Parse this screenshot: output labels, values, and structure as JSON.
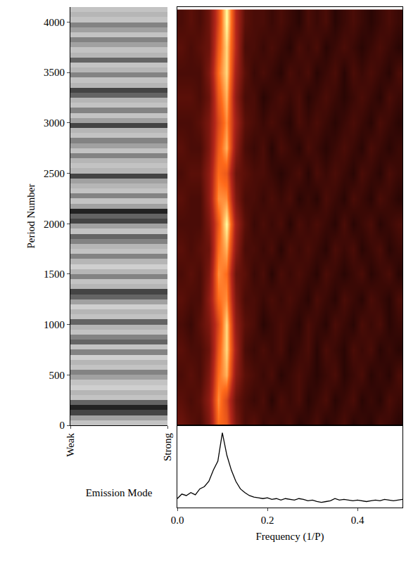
{
  "chart_data": [
    {
      "type": "heatmap",
      "xlabel": "Emission Mode",
      "ylabel": "Period Number",
      "xlim": [
        0,
        1
      ],
      "xticks": [
        {
          "value": 0,
          "label": "Weak"
        },
        {
          "value": 1,
          "label": "Strong"
        }
      ],
      "ylim": [
        0,
        4150
      ],
      "yticks": [
        0,
        500,
        1000,
        1500,
        2000,
        2500,
        3000,
        3500,
        4000
      ],
      "zlim": [
        0,
        1
      ],
      "y": [
        25,
        75,
        125,
        175,
        225,
        275,
        325,
        375,
        425,
        475,
        525,
        575,
        625,
        675,
        725,
        775,
        825,
        875,
        925,
        975,
        1025,
        1075,
        1125,
        1175,
        1225,
        1275,
        1325,
        1375,
        1425,
        1475,
        1525,
        1575,
        1625,
        1675,
        1725,
        1775,
        1825,
        1875,
        1925,
        1975,
        2025,
        2075,
        2125,
        2175,
        2225,
        2275,
        2325,
        2375,
        2425,
        2475,
        2525,
        2575,
        2625,
        2675,
        2725,
        2775,
        2825,
        2875,
        2925,
        2975,
        3025,
        3075,
        3125,
        3175,
        3225,
        3275,
        3325,
        3375,
        3425,
        3475,
        3525,
        3575,
        3625,
        3675,
        3725,
        3775,
        3825,
        3875,
        3925,
        3975,
        4025,
        4075,
        4125
      ],
      "values": [
        0.3,
        0.5,
        0.8,
        0.9,
        0.7,
        0.3,
        0.4,
        0.2,
        0.3,
        0.5,
        0.6,
        0.3,
        0.4,
        0.2,
        0.6,
        0.3,
        0.7,
        0.6,
        0.3,
        0.4,
        0.7,
        0.3,
        0.4,
        0.2,
        0.5,
        0.7,
        0.8,
        0.4,
        0.3,
        0.6,
        0.4,
        0.2,
        0.4,
        0.6,
        0.3,
        0.4,
        0.6,
        0.7,
        0.3,
        0.5,
        0.8,
        0.7,
        0.9,
        0.5,
        0.3,
        0.6,
        0.3,
        0.4,
        0.5,
        0.8,
        0.4,
        0.3,
        0.4,
        0.6,
        0.3,
        0.5,
        0.6,
        0.3,
        0.4,
        0.8,
        0.5,
        0.3,
        0.6,
        0.3,
        0.4,
        0.7,
        0.8,
        0.4,
        0.3,
        0.6,
        0.4,
        0.3,
        0.7,
        0.4,
        0.3,
        0.5,
        0.6,
        0.3,
        0.5,
        0.6,
        0.3,
        0.4,
        0.3
      ]
    },
    {
      "type": "heatmap",
      "tick_labels": false,
      "xlim": [
        0,
        0.5
      ],
      "ylim": [
        0,
        4150
      ],
      "zlim": [
        0,
        1
      ],
      "x": [
        0.01,
        0.03,
        0.05,
        0.07,
        0.09,
        0.11,
        0.13,
        0.15,
        0.17,
        0.19,
        0.21,
        0.23,
        0.25,
        0.27,
        0.29,
        0.31,
        0.33,
        0.35,
        0.37,
        0.39,
        0.41,
        0.43,
        0.45,
        0.47,
        0.49
      ],
      "y": [
        0,
        250,
        500,
        750,
        1000,
        1250,
        1500,
        1750,
        2000,
        2250,
        2500,
        2750,
        3000,
        3250,
        3500,
        3750,
        4000
      ],
      "z": [
        [
          0.4,
          0.35,
          0.3,
          0.45,
          0.8,
          0.75,
          0.45,
          0.3,
          0.35,
          0.25,
          0.3,
          0.25,
          0.3,
          0.2,
          0.25,
          0.3,
          0.2,
          0.25,
          0.3,
          0.2,
          0.25,
          0.2,
          0.3,
          0.25,
          0.2
        ],
        [
          0.35,
          0.3,
          0.35,
          0.5,
          0.85,
          0.7,
          0.4,
          0.3,
          0.25,
          0.3,
          0.2,
          0.3,
          0.25,
          0.3,
          0.2,
          0.25,
          0.3,
          0.2,
          0.25,
          0.3,
          0.2,
          0.25,
          0.2,
          0.3,
          0.25
        ],
        [
          0.3,
          0.35,
          0.3,
          0.45,
          0.8,
          0.9,
          0.5,
          0.35,
          0.3,
          0.25,
          0.3,
          0.2,
          0.25,
          0.3,
          0.25,
          0.2,
          0.25,
          0.3,
          0.2,
          0.25,
          0.3,
          0.2,
          0.25,
          0.2,
          0.3
        ],
        [
          0.35,
          0.3,
          0.3,
          0.4,
          0.75,
          0.95,
          0.55,
          0.3,
          0.25,
          0.3,
          0.25,
          0.3,
          0.2,
          0.25,
          0.3,
          0.2,
          0.3,
          0.25,
          0.2,
          0.3,
          0.25,
          0.3,
          0.2,
          0.25,
          0.2
        ],
        [
          0.3,
          0.25,
          0.35,
          0.45,
          0.7,
          0.95,
          0.5,
          0.35,
          0.3,
          0.2,
          0.25,
          0.3,
          0.25,
          0.2,
          0.3,
          0.25,
          0.2,
          0.3,
          0.25,
          0.2,
          0.3,
          0.25,
          0.3,
          0.2,
          0.25
        ],
        [
          0.35,
          0.3,
          0.3,
          0.5,
          0.8,
          0.85,
          0.45,
          0.3,
          0.3,
          0.25,
          0.3,
          0.25,
          0.3,
          0.25,
          0.2,
          0.3,
          0.25,
          0.2,
          0.3,
          0.25,
          0.2,
          0.3,
          0.25,
          0.2,
          0.3
        ],
        [
          0.3,
          0.35,
          0.3,
          0.45,
          0.85,
          0.8,
          0.4,
          0.35,
          0.25,
          0.3,
          0.2,
          0.3,
          0.25,
          0.3,
          0.25,
          0.2,
          0.3,
          0.25,
          0.2,
          0.25,
          0.3,
          0.2,
          0.25,
          0.3,
          0.2
        ],
        [
          0.35,
          0.3,
          0.35,
          0.4,
          0.8,
          0.9,
          0.5,
          0.3,
          0.3,
          0.25,
          0.3,
          0.2,
          0.3,
          0.25,
          0.3,
          0.25,
          0.2,
          0.3,
          0.25,
          0.3,
          0.2,
          0.25,
          0.3,
          0.2,
          0.25
        ],
        [
          0.3,
          0.3,
          0.3,
          0.45,
          0.75,
          1.0,
          0.55,
          0.35,
          0.25,
          0.3,
          0.25,
          0.3,
          0.2,
          0.3,
          0.25,
          0.3,
          0.25,
          0.2,
          0.3,
          0.2,
          0.25,
          0.3,
          0.2,
          0.25,
          0.3
        ],
        [
          0.35,
          0.3,
          0.3,
          0.5,
          0.85,
          0.85,
          0.45,
          0.3,
          0.3,
          0.25,
          0.3,
          0.25,
          0.3,
          0.2,
          0.25,
          0.2,
          0.3,
          0.25,
          0.2,
          0.3,
          0.25,
          0.2,
          0.3,
          0.25,
          0.2
        ],
        [
          0.3,
          0.35,
          0.35,
          0.5,
          0.8,
          0.75,
          0.4,
          0.35,
          0.3,
          0.3,
          0.25,
          0.2,
          0.25,
          0.3,
          0.2,
          0.3,
          0.25,
          0.3,
          0.25,
          0.2,
          0.3,
          0.25,
          0.2,
          0.3,
          0.25
        ],
        [
          0.35,
          0.3,
          0.3,
          0.45,
          0.75,
          0.9,
          0.5,
          0.3,
          0.25,
          0.3,
          0.2,
          0.3,
          0.25,
          0.2,
          0.3,
          0.25,
          0.2,
          0.25,
          0.3,
          0.25,
          0.2,
          0.3,
          0.25,
          0.2,
          0.25
        ],
        [
          0.3,
          0.3,
          0.35,
          0.45,
          0.7,
          0.85,
          0.55,
          0.35,
          0.3,
          0.25,
          0.3,
          0.25,
          0.2,
          0.3,
          0.25,
          0.3,
          0.25,
          0.2,
          0.25,
          0.3,
          0.25,
          0.2,
          0.3,
          0.25,
          0.2
        ],
        [
          0.35,
          0.35,
          0.3,
          0.4,
          0.75,
          0.9,
          0.5,
          0.3,
          0.3,
          0.2,
          0.25,
          0.3,
          0.25,
          0.3,
          0.2,
          0.25,
          0.3,
          0.25,
          0.2,
          0.25,
          0.3,
          0.25,
          0.2,
          0.3,
          0.25
        ],
        [
          0.3,
          0.3,
          0.3,
          0.45,
          0.8,
          0.95,
          0.55,
          0.35,
          0.25,
          0.3,
          0.25,
          0.2,
          0.3,
          0.25,
          0.3,
          0.2,
          0.25,
          0.3,
          0.2,
          0.3,
          0.25,
          0.3,
          0.25,
          0.2,
          0.3
        ],
        [
          0.35,
          0.3,
          0.35,
          0.4,
          0.75,
          0.95,
          0.6,
          0.3,
          0.3,
          0.25,
          0.3,
          0.25,
          0.2,
          0.3,
          0.25,
          0.3,
          0.2,
          0.25,
          0.3,
          0.25,
          0.2,
          0.25,
          0.3,
          0.25,
          0.2
        ],
        [
          0.3,
          0.35,
          0.3,
          0.4,
          0.7,
          1.0,
          0.6,
          0.35,
          0.3,
          0.3,
          0.25,
          0.3,
          0.25,
          0.2,
          0.3,
          0.25,
          0.3,
          0.2,
          0.25,
          0.3,
          0.25,
          0.2,
          0.25,
          0.3,
          0.25
        ]
      ]
    },
    {
      "type": "line",
      "xlabel": "Frequency (1/P)",
      "tick_labels": "x",
      "color": "#000000",
      "xlim": [
        0,
        0.5
      ],
      "xticks": [
        {
          "value": 0,
          "label": "0.0"
        },
        {
          "value": 0.2,
          "label": "0.2"
        },
        {
          "value": 0.4,
          "label": "0.4"
        }
      ],
      "ylim": [
        0,
        1.1
      ],
      "x": [
        0,
        0.01,
        0.02,
        0.03,
        0.04,
        0.05,
        0.06,
        0.07,
        0.08,
        0.09,
        0.1,
        0.11,
        0.12,
        0.13,
        0.14,
        0.15,
        0.16,
        0.17,
        0.18,
        0.19,
        0.2,
        0.21,
        0.22,
        0.23,
        0.24,
        0.25,
        0.26,
        0.27,
        0.28,
        0.29,
        0.3,
        0.31,
        0.32,
        0.33,
        0.34,
        0.35,
        0.36,
        0.37,
        0.38,
        0.39,
        0.4,
        0.41,
        0.42,
        0.43,
        0.44,
        0.45,
        0.46,
        0.47,
        0.48,
        0.49,
        0.5
      ],
      "values": [
        0.12,
        0.18,
        0.16,
        0.2,
        0.17,
        0.25,
        0.28,
        0.35,
        0.5,
        0.62,
        1.0,
        0.7,
        0.5,
        0.35,
        0.25,
        0.2,
        0.16,
        0.14,
        0.13,
        0.12,
        0.13,
        0.11,
        0.12,
        0.1,
        0.12,
        0.11,
        0.1,
        0.12,
        0.11,
        0.09,
        0.1,
        0.08,
        0.07,
        0.08,
        0.09,
        0.12,
        0.1,
        0.11,
        0.1,
        0.09,
        0.1,
        0.09,
        0.08,
        0.09,
        0.1,
        0.09,
        0.11,
        0.1,
        0.09,
        0.1,
        0.11
      ]
    }
  ]
}
